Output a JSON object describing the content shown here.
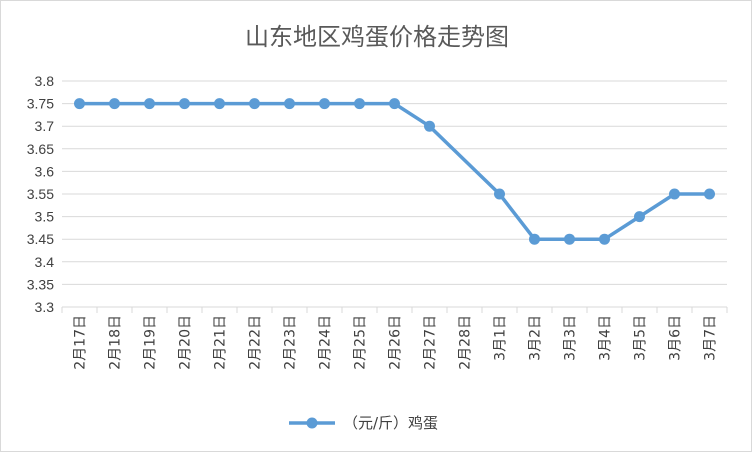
{
  "chart_data": {
    "type": "line",
    "title": "山东地区鸡蛋价格走势图",
    "xlabel": "",
    "ylabel": "",
    "ylim": [
      3.3,
      3.8
    ],
    "y_ticks": [
      3.3,
      3.35,
      3.4,
      3.45,
      3.5,
      3.55,
      3.6,
      3.65,
      3.7,
      3.75,
      3.8
    ],
    "y_tick_labels": [
      "3.3",
      "3.35",
      "3.4",
      "3.45",
      "3.5",
      "3.55",
      "3.6",
      "3.65",
      "3.7",
      "3.75",
      "3.8"
    ],
    "grid": true,
    "legend_position": "bottom",
    "categories": [
      "2月17日",
      "2月18日",
      "2月19日",
      "2月20日",
      "2月21日",
      "2月22日",
      "2月23日",
      "2月24日",
      "2月25日",
      "2月26日",
      "2月27日",
      "2月28日",
      "3月1日",
      "3月2日",
      "3月3日",
      "3月4日",
      "3月5日",
      "3月6日",
      "3月7日"
    ],
    "series": [
      {
        "name": "（元/斤）鸡蛋",
        "color": "#5b9bd5",
        "values": [
          3.75,
          3.75,
          3.75,
          3.75,
          3.75,
          3.75,
          3.75,
          3.75,
          3.75,
          3.75,
          3.7,
          null,
          3.55,
          3.45,
          3.45,
          3.45,
          3.5,
          3.55,
          3.55
        ]
      }
    ]
  }
}
